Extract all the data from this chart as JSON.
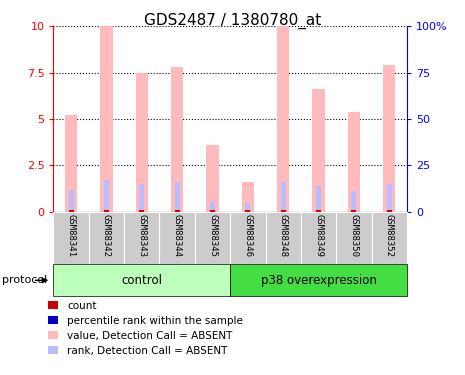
{
  "title": "GDS2487 / 1380780_at",
  "samples": [
    "GSM88341",
    "GSM88342",
    "GSM88343",
    "GSM88344",
    "GSM88345",
    "GSM88346",
    "GSM88348",
    "GSM88349",
    "GSM88350",
    "GSM88352"
  ],
  "pink_values": [
    5.2,
    10.0,
    7.5,
    7.8,
    3.6,
    1.6,
    10.0,
    6.6,
    5.4,
    7.9
  ],
  "blue_values": [
    1.2,
    1.7,
    1.5,
    1.6,
    0.6,
    0.5,
    1.6,
    1.4,
    1.1,
    1.5
  ],
  "red_values": [
    0.12,
    0.12,
    0.12,
    0.12,
    0.12,
    0.12,
    0.12,
    0.12,
    0.12,
    0.12
  ],
  "ylim": [
    0,
    10
  ],
  "yticks": [
    0,
    2.5,
    5.0,
    7.5,
    10
  ],
  "ytick_labels_left": [
    "0",
    "2.5",
    "5",
    "7.5",
    "10"
  ],
  "ytick_labels_right": [
    "0",
    "25",
    "50",
    "75",
    "100%"
  ],
  "groups": [
    {
      "label": "control",
      "indices": [
        0,
        1,
        2,
        3,
        4
      ],
      "color": "#bbffbb"
    },
    {
      "label": "p38 overexpression",
      "indices": [
        5,
        6,
        7,
        8,
        9
      ],
      "color": "#44dd44"
    }
  ],
  "protocol_label": "protocol",
  "bar_width": 0.35,
  "pink_color": "#ffbbbb",
  "blue_color": "#bbbbff",
  "red_color": "#cc0000",
  "blue_dark_color": "#0000cc",
  "title_fontsize": 11,
  "legend_items": [
    {
      "color": "#cc0000",
      "label": "count"
    },
    {
      "color": "#0000cc",
      "label": "percentile rank within the sample"
    },
    {
      "color": "#ffbbbb",
      "label": "value, Detection Call = ABSENT"
    },
    {
      "color": "#bbbbff",
      "label": "rank, Detection Call = ABSENT"
    }
  ]
}
